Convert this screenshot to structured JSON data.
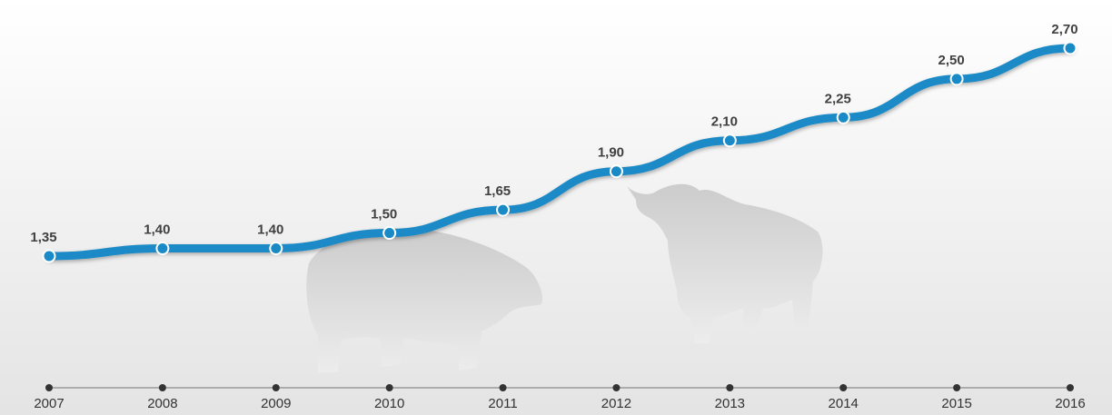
{
  "chart_data": {
    "type": "line",
    "categories": [
      "2007",
      "2008",
      "2009",
      "2010",
      "2011",
      "2012",
      "2013",
      "2014",
      "2015",
      "2016"
    ],
    "values": [
      1.35,
      1.4,
      1.4,
      1.5,
      1.65,
      1.9,
      2.1,
      2.25,
      2.5,
      2.7
    ],
    "value_labels": [
      "1,35",
      "1,40",
      "1,40",
      "1,50",
      "1,65",
      "1,90",
      "2,10",
      "2,25",
      "2,50",
      "2,70"
    ],
    "color": "#1a8ac6"
  }
}
